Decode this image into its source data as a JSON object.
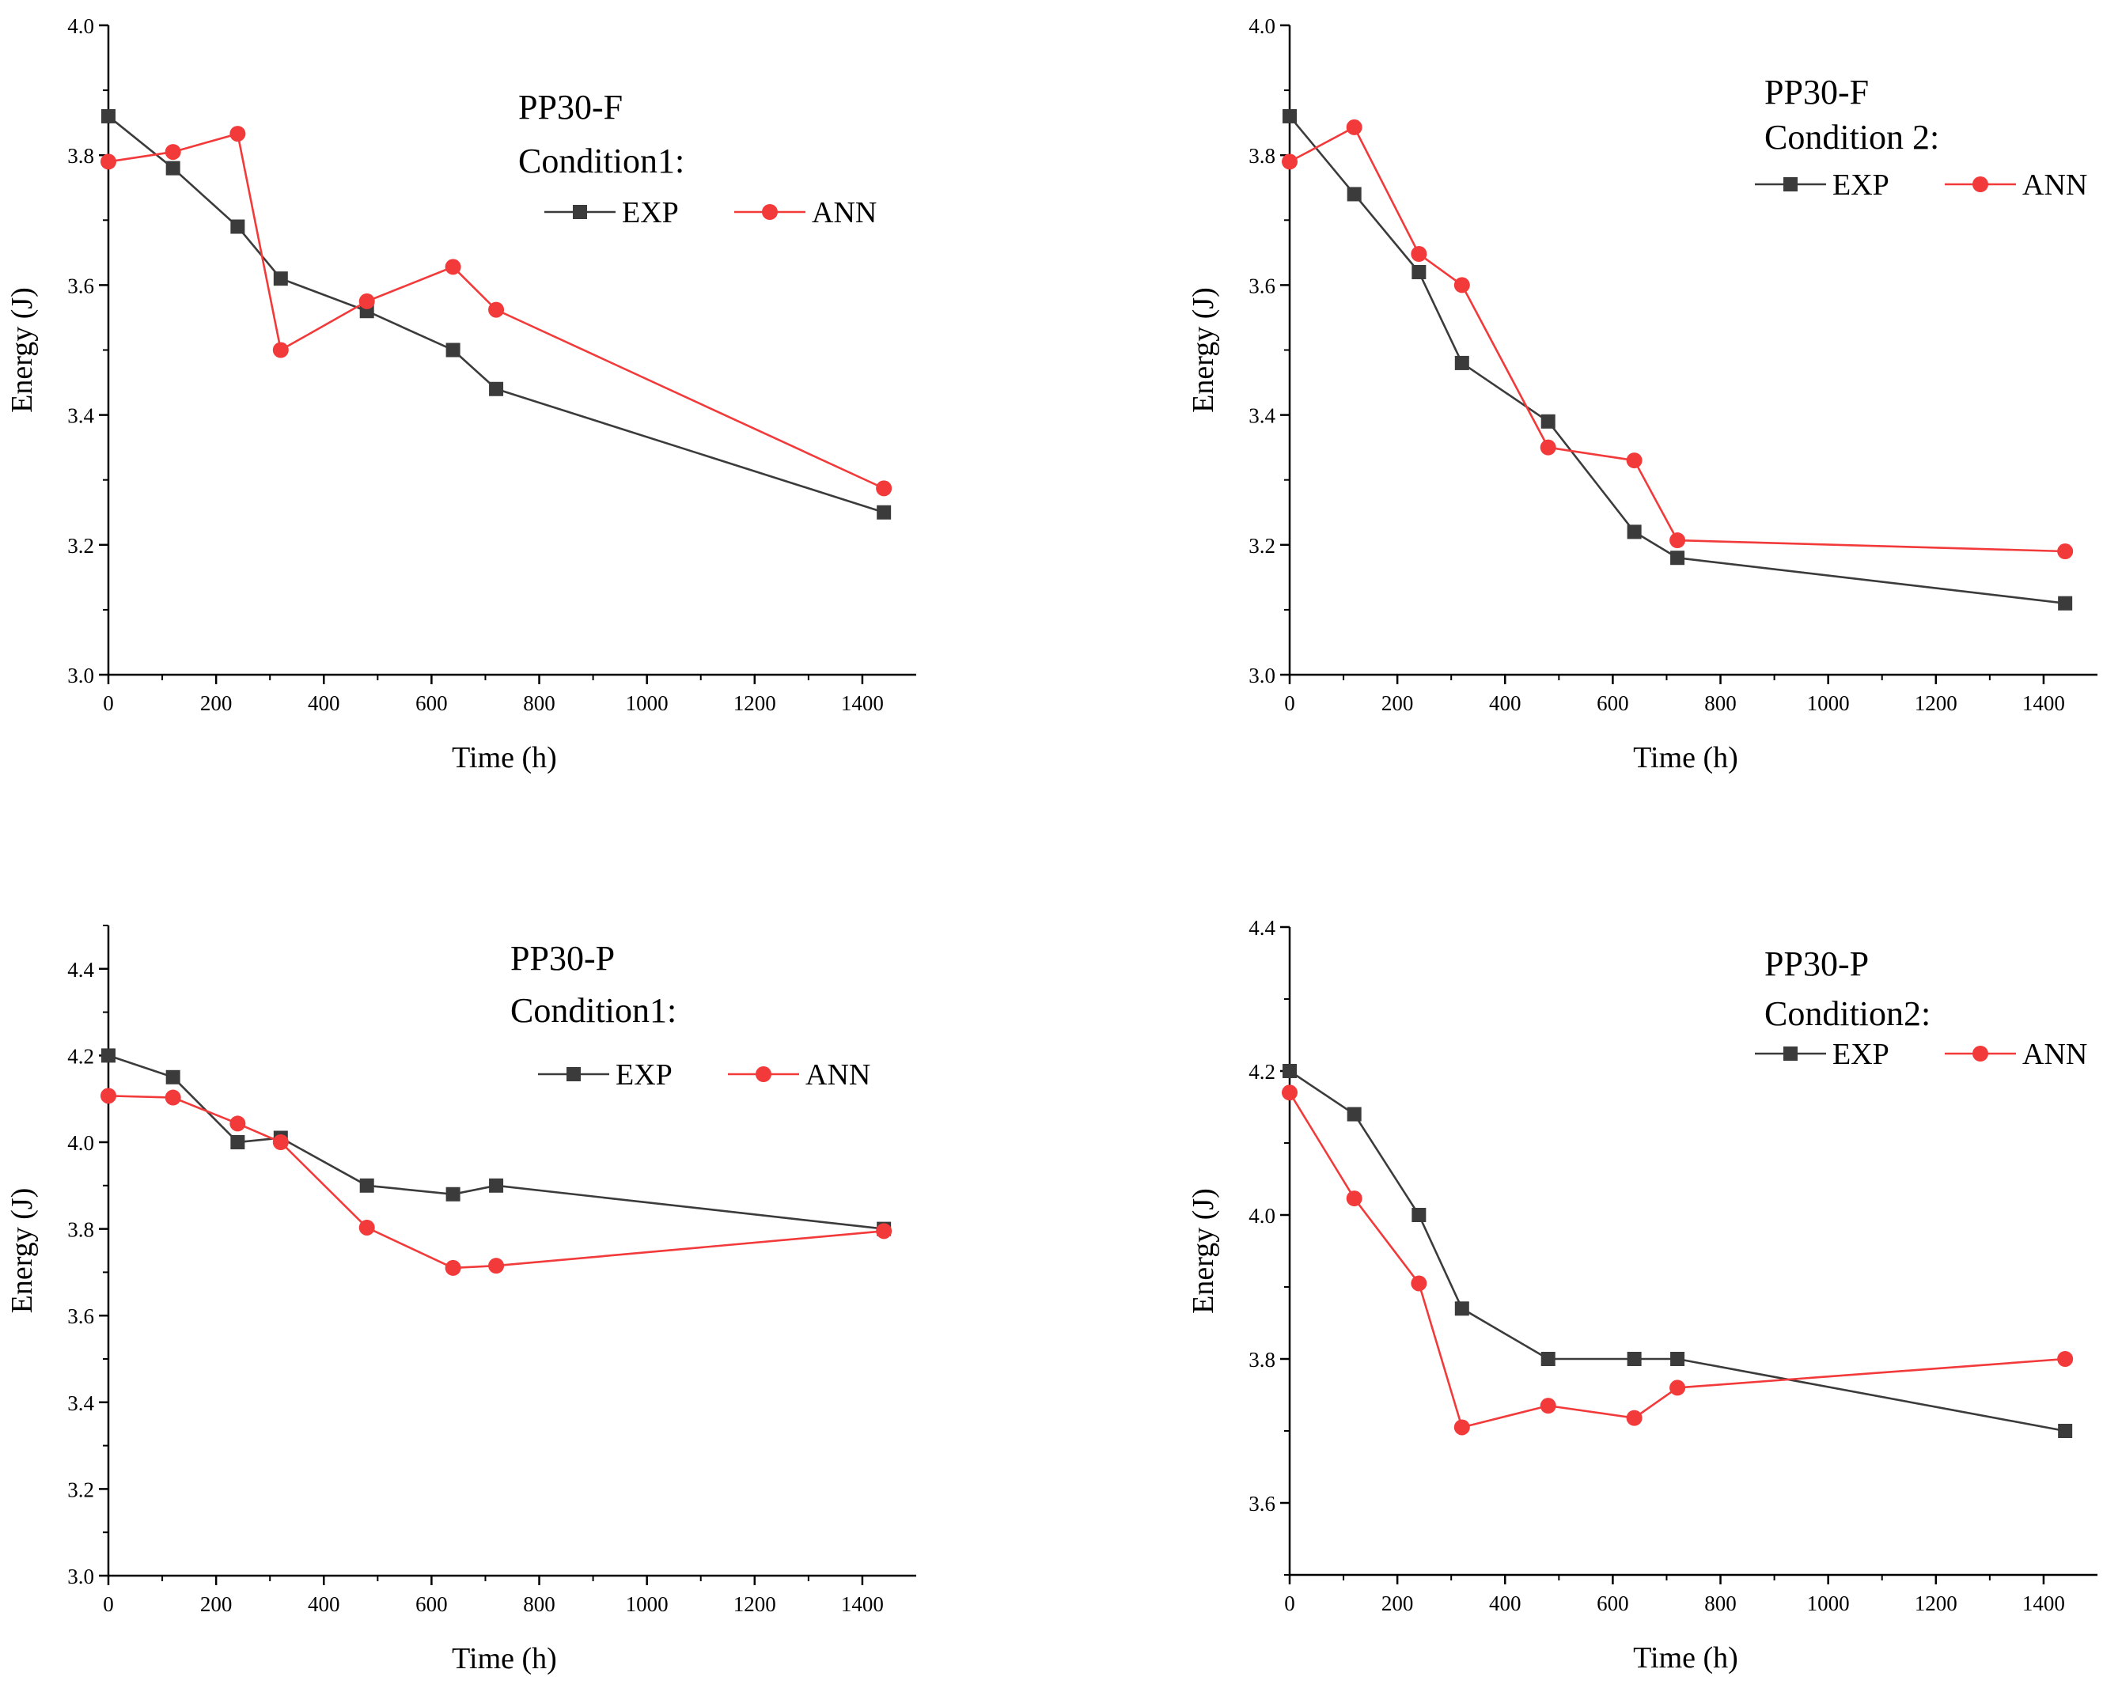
{
  "figure": {
    "colors": {
      "exp": "#3b3b3b",
      "ann": "#f23a3a",
      "axis": "#000000"
    }
  },
  "chart_data": [
    {
      "type": "line",
      "title": [
        "PP30-F",
        "Condition1:"
      ],
      "xlabel": "Time (h)",
      "ylabel": "Energy (J)",
      "xlim": [
        0,
        1500
      ],
      "ylim": [
        3.0,
        4.0
      ],
      "xticks": [
        0,
        200,
        400,
        600,
        800,
        1000,
        1200,
        1400
      ],
      "yticks": [
        3.0,
        3.2,
        3.4,
        3.6,
        3.8,
        4.0
      ],
      "xtick_labels": [
        "0",
        "200",
        "400",
        "600",
        "800",
        "1000",
        "1200",
        "1400"
      ],
      "ytick_labels": [
        "3.0",
        "3.2",
        "3.4",
        "3.6",
        "3.8",
        "4.0"
      ],
      "legend": [
        "EXP",
        "ANN"
      ],
      "series": [
        {
          "name": "EXP",
          "marker": "square",
          "x": [
            0,
            120,
            240,
            320,
            480,
            640,
            720,
            1440
          ],
          "y": [
            3.86,
            3.78,
            3.69,
            3.61,
            3.56,
            3.5,
            3.44,
            3.25
          ]
        },
        {
          "name": "ANN",
          "marker": "circle",
          "x": [
            0,
            120,
            240,
            320,
            480,
            640,
            720,
            1440
          ],
          "y": [
            3.79,
            3.805,
            3.833,
            3.5,
            3.575,
            3.628,
            3.562,
            3.287
          ]
        }
      ]
    },
    {
      "type": "line",
      "title": [
        "PP30-F",
        "Condition 2:"
      ],
      "xlabel": "Time (h)",
      "ylabel": "Energy (J)",
      "xlim": [
        0,
        1500
      ],
      "ylim": [
        3.0,
        4.0
      ],
      "xticks": [
        0,
        200,
        400,
        600,
        800,
        1000,
        1200,
        1400
      ],
      "yticks": [
        3.0,
        3.2,
        3.4,
        3.6,
        3.8,
        4.0
      ],
      "xtick_labels": [
        "0",
        "200",
        "400",
        "600",
        "800",
        "1000",
        "1200",
        "1400"
      ],
      "ytick_labels": [
        "3.0",
        "3.2",
        "3.4",
        "3.6",
        "3.8",
        "4.0"
      ],
      "legend": [
        "EXP",
        "ANN"
      ],
      "series": [
        {
          "name": "EXP",
          "marker": "square",
          "x": [
            0,
            120,
            240,
            320,
            480,
            640,
            720,
            1440
          ],
          "y": [
            3.86,
            3.74,
            3.62,
            3.48,
            3.39,
            3.22,
            3.18,
            3.11
          ]
        },
        {
          "name": "ANN",
          "marker": "circle",
          "x": [
            0,
            120,
            240,
            320,
            480,
            640,
            720,
            1440
          ],
          "y": [
            3.79,
            3.843,
            3.648,
            3.6,
            3.35,
            3.33,
            3.207,
            3.19
          ]
        }
      ]
    },
    {
      "type": "line",
      "title": [
        "PP30-P",
        "Condition1:"
      ],
      "xlabel": "Time (h)",
      "ylabel": "Energy (J)",
      "xlim": [
        0,
        1500
      ],
      "ylim": [
        3.0,
        4.5
      ],
      "xticks": [
        0,
        200,
        400,
        600,
        800,
        1000,
        1200,
        1400
      ],
      "yticks": [
        3.0,
        3.2,
        3.4,
        3.6,
        3.8,
        4.0,
        4.2,
        4.4
      ],
      "xtick_labels": [
        "0",
        "200",
        "400",
        "600",
        "800",
        "1000",
        "1200",
        "1400"
      ],
      "ytick_labels": [
        "3.0",
        "3.2",
        "3.4",
        "3.6",
        "3.8",
        "4.0",
        "4.2",
        "4.4"
      ],
      "legend": [
        "EXP",
        "ANN"
      ],
      "series": [
        {
          "name": "EXP",
          "marker": "square",
          "x": [
            0,
            120,
            240,
            320,
            480,
            640,
            720,
            1440
          ],
          "y": [
            4.2,
            4.15,
            4.0,
            4.01,
            3.9,
            3.88,
            3.9,
            3.8
          ]
        },
        {
          "name": "ANN",
          "marker": "circle",
          "x": [
            0,
            120,
            240,
            320,
            480,
            640,
            720,
            1440
          ],
          "y": [
            4.107,
            4.103,
            4.043,
            4.0,
            3.803,
            3.71,
            3.715,
            3.795
          ]
        }
      ]
    },
    {
      "type": "line",
      "title": [
        "PP30-P",
        "Condition2:"
      ],
      "xlabel": "Time (h)",
      "ylabel": "Energy (J)",
      "xlim": [
        0,
        1500
      ],
      "ylim": [
        3.5,
        4.4
      ],
      "xticks": [
        0,
        200,
        400,
        600,
        800,
        1000,
        1200,
        1400
      ],
      "yticks": [
        3.6,
        3.8,
        4.0,
        4.2,
        4.4
      ],
      "xtick_labels": [
        "0",
        "200",
        "400",
        "600",
        "800",
        "1000",
        "1200",
        "1400"
      ],
      "ytick_labels": [
        "3.6",
        "3.8",
        "4.0",
        "4.2",
        "4.4"
      ],
      "legend": [
        "EXP",
        "ANN"
      ],
      "series": [
        {
          "name": "EXP",
          "marker": "square",
          "x": [
            0,
            120,
            240,
            320,
            480,
            640,
            720,
            1440
          ],
          "y": [
            4.2,
            4.14,
            4.0,
            3.87,
            3.8,
            3.8,
            3.8,
            3.7
          ]
        },
        {
          "name": "ANN",
          "marker": "circle",
          "x": [
            0,
            120,
            240,
            320,
            480,
            640,
            720,
            1440
          ],
          "y": [
            4.17,
            4.023,
            3.905,
            3.705,
            3.735,
            3.718,
            3.76,
            3.8
          ]
        }
      ]
    }
  ]
}
